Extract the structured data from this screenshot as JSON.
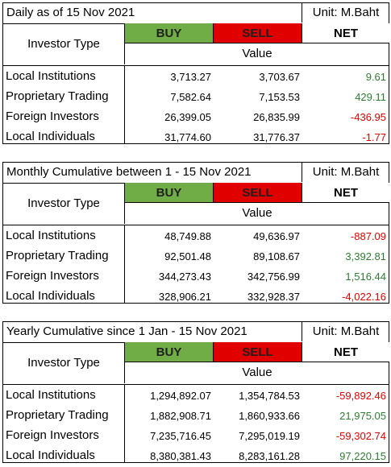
{
  "colors": {
    "buy_bg": "#70ad47",
    "sell_bg": "#e00000",
    "positive": "#2e7d32",
    "negative": "#e00000"
  },
  "tables": [
    {
      "title": "Daily as of 15 Nov 2021",
      "unit": "Unit: M.Baht",
      "investor_type_label": "Investor Type",
      "buy_label": "BUY",
      "sell_label": "SELL",
      "net_label": "NET",
      "value_label": "Value",
      "rows": [
        {
          "label": "Local Institutions",
          "buy": "3,713.27",
          "sell": "3,703.67",
          "net": "9.61",
          "net_sign": "pos"
        },
        {
          "label": "Proprietary Trading",
          "buy": "7,582.64",
          "sell": "7,153.53",
          "net": "429.11",
          "net_sign": "pos"
        },
        {
          "label": "Foreign Investors",
          "buy": "26,399.05",
          "sell": "26,835.99",
          "net": "-436.95",
          "net_sign": "neg"
        },
        {
          "label": "Local Individuals",
          "buy": "31,774.60",
          "sell": "31,776.37",
          "net": "-1.77",
          "net_sign": "neg"
        }
      ]
    },
    {
      "title": "Monthly Cumulative between 1 - 15 Nov 2021",
      "unit": "Unit: M.Baht",
      "investor_type_label": "Investor Type",
      "buy_label": "BUY",
      "sell_label": "SELL",
      "net_label": "NET",
      "value_label": "Value",
      "rows": [
        {
          "label": "Local Institutions",
          "buy": "48,749.88",
          "sell": "49,636.97",
          "net": "-887.09",
          "net_sign": "neg"
        },
        {
          "label": "Proprietary Trading",
          "buy": "92,501.48",
          "sell": "89,108.67",
          "net": "3,392.81",
          "net_sign": "pos"
        },
        {
          "label": "Foreign Investors",
          "buy": "344,273.43",
          "sell": "342,756.99",
          "net": "1,516.44",
          "net_sign": "pos"
        },
        {
          "label": "Local Individuals",
          "buy": "328,906.21",
          "sell": "332,928.37",
          "net": "-4,022.16",
          "net_sign": "neg"
        }
      ]
    },
    {
      "title": "Yearly Cumulative since 1 Jan - 15 Nov 2021",
      "unit": "Unit: M.Baht",
      "investor_type_label": "Investor Type",
      "buy_label": "BUY",
      "sell_label": "SELL",
      "net_label": "NET",
      "value_label": "Value",
      "rows": [
        {
          "label": "Local Institutions",
          "buy": "1,294,892.07",
          "sell": "1,354,784.53",
          "net": "-59,892.46",
          "net_sign": "neg"
        },
        {
          "label": "Proprietary Trading",
          "buy": "1,882,908.71",
          "sell": "1,860,933.66",
          "net": "21,975.05",
          "net_sign": "pos"
        },
        {
          "label": "Foreign Investors",
          "buy": "7,235,716.45",
          "sell": "7,295,019.19",
          "net": "-59,302.74",
          "net_sign": "neg"
        },
        {
          "label": "Local Individuals",
          "buy": "8,380,381.43",
          "sell": "8,283,161.28",
          "net": "97,220.15",
          "net_sign": "pos"
        }
      ]
    }
  ]
}
